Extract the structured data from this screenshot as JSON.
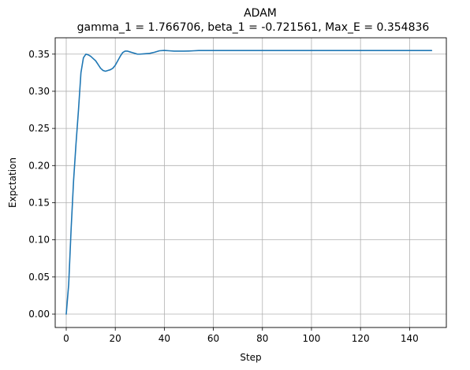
{
  "chart_data": {
    "type": "line",
    "title": "ADAM",
    "subtitle": "gamma_1 = 1.766706, beta_1 = -0.721561, Max_E = 0.354836",
    "xlabel": "Step",
    "ylabel": "Expctation",
    "xlim": [
      -4.5,
      155
    ],
    "ylim": [
      -0.018,
      0.372
    ],
    "xticks": [
      0,
      20,
      40,
      60,
      80,
      100,
      120,
      140
    ],
    "yticks": [
      0.0,
      0.05,
      0.1,
      0.15,
      0.2,
      0.25,
      0.3,
      0.35
    ],
    "xtick_labels": [
      "0",
      "20",
      "40",
      "60",
      "80",
      "100",
      "120",
      "140"
    ],
    "ytick_labels": [
      "0.00",
      "0.05",
      "0.10",
      "0.15",
      "0.20",
      "0.25",
      "0.30",
      "0.35"
    ],
    "grid": true,
    "line_color": "#1f77b4",
    "series": [
      {
        "x": [
          0,
          1,
          2,
          3,
          4,
          5,
          6,
          7,
          8,
          9,
          10,
          11,
          12,
          13,
          14,
          15,
          16,
          17,
          18,
          19,
          20,
          21,
          22,
          23,
          24,
          25,
          26,
          27,
          28,
          29,
          30,
          32,
          34,
          36,
          38,
          40,
          42,
          44,
          46,
          48,
          50,
          52,
          54,
          56,
          58,
          60,
          65,
          70,
          80,
          90,
          100,
          110,
          120,
          130,
          140,
          149
        ],
        "y": [
          0.0,
          0.04,
          0.115,
          0.18,
          0.23,
          0.275,
          0.325,
          0.345,
          0.35,
          0.349,
          0.347,
          0.344,
          0.341,
          0.336,
          0.331,
          0.328,
          0.327,
          0.328,
          0.329,
          0.331,
          0.335,
          0.341,
          0.347,
          0.352,
          0.354,
          0.354,
          0.353,
          0.352,
          0.351,
          0.35,
          0.35,
          0.3505,
          0.351,
          0.3525,
          0.3545,
          0.355,
          0.3545,
          0.354,
          0.354,
          0.354,
          0.3542,
          0.3545,
          0.3548,
          0.3548,
          0.3548,
          0.3548,
          0.3548,
          0.3548,
          0.3548,
          0.3548,
          0.3548,
          0.3548,
          0.3548,
          0.3548,
          0.3548,
          0.3548
        ]
      }
    ]
  }
}
